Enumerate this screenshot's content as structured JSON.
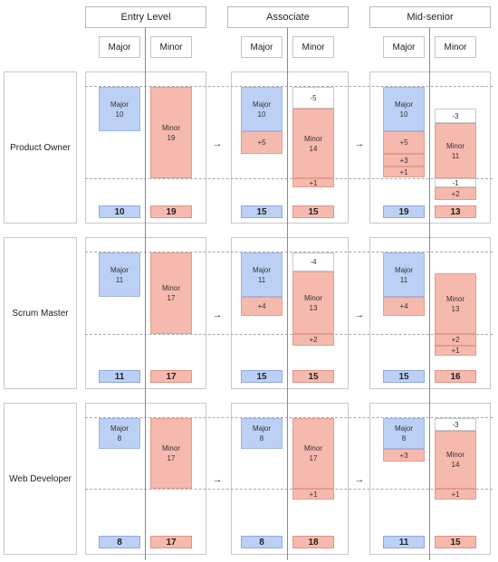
{
  "levels": [
    {
      "name": "Entry Level",
      "major_label": "Major",
      "minor_label": "Minor"
    },
    {
      "name": "Associate",
      "major_label": "Major",
      "minor_label": "Minor"
    },
    {
      "name": "Mid-senior",
      "major_label": "Major",
      "minor_label": "Minor"
    }
  ],
  "arrow": "→",
  "roles": [
    {
      "name": "Product Owner",
      "entry": {
        "major": {
          "label": "Major",
          "value": "10"
        },
        "minor": {
          "label": "Minor",
          "value": "19"
        },
        "major_total": "10",
        "minor_total": "19"
      },
      "associate": {
        "major": {
          "label": "Major",
          "value": "10"
        },
        "major_deltas": [
          "+5"
        ],
        "minor_neg": [
          "-5"
        ],
        "minor": {
          "label": "Minor",
          "value": "14"
        },
        "minor_deltas": [
          "+1"
        ],
        "major_total": "15",
        "minor_total": "15"
      },
      "mid": {
        "major": {
          "label": "Major",
          "value": "10"
        },
        "major_deltas": [
          "+5",
          "+3",
          "+1"
        ],
        "minor_neg": [
          "-3",
          "-1"
        ],
        "minor": {
          "label": "Minor",
          "value": "11"
        },
        "minor_deltas": [
          "+2"
        ],
        "major_total": "19",
        "minor_total": "13"
      }
    },
    {
      "name": "Scrum Master",
      "entry": {
        "major": {
          "label": "Major",
          "value": "11"
        },
        "minor": {
          "label": "Minor",
          "value": "17"
        },
        "major_total": "11",
        "minor_total": "17"
      },
      "associate": {
        "major": {
          "label": "Major",
          "value": "11"
        },
        "major_deltas": [
          "+4"
        ],
        "minor_neg": [
          "-4"
        ],
        "minor": {
          "label": "Minor",
          "value": "13"
        },
        "minor_deltas": [
          "+2"
        ],
        "major_total": "15",
        "minor_total": "15"
      },
      "mid": {
        "major": {
          "label": "Major",
          "value": "11"
        },
        "major_deltas": [
          "+4"
        ],
        "minor": {
          "label": "Minor",
          "value": "13"
        },
        "minor_deltas": [
          "+2",
          "+1"
        ],
        "major_total": "15",
        "minor_total": "16"
      }
    },
    {
      "name": "Web Developer",
      "entry": {
        "major": {
          "label": "Major",
          "value": "8"
        },
        "minor": {
          "label": "Minor",
          "value": "17"
        },
        "major_total": "8",
        "minor_total": "17"
      },
      "associate": {
        "major": {
          "label": "Major",
          "value": "8"
        },
        "minor": {
          "label": "Minor",
          "value": "17"
        },
        "minor_deltas": [
          "+1"
        ],
        "major_total": "8",
        "minor_total": "18"
      },
      "mid": {
        "major": {
          "label": "Major",
          "value": "8"
        },
        "major_deltas": [
          "+3"
        ],
        "minor_neg": [
          "-3"
        ],
        "minor": {
          "label": "Minor",
          "value": "14"
        },
        "minor_deltas": [
          "+1"
        ],
        "major_total": "11",
        "minor_total": "15"
      }
    }
  ]
}
